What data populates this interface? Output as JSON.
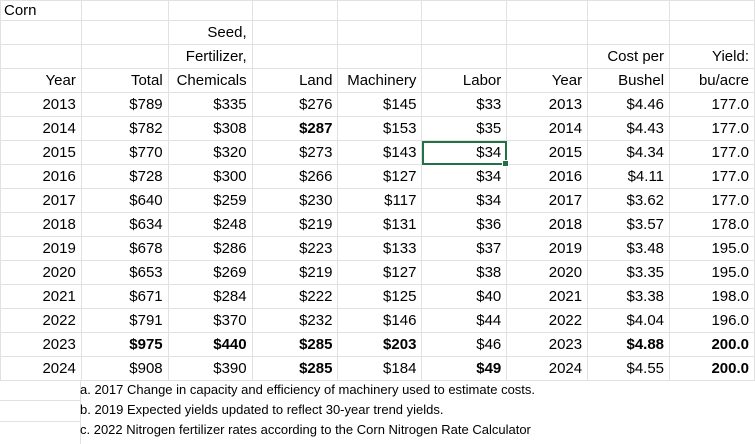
{
  "sheet": {
    "title": "Corn",
    "headers": [
      [
        "",
        "",
        "Seed,",
        "",
        "",
        "",
        "",
        "",
        ""
      ],
      [
        "",
        "",
        "Fertilizer,",
        "",
        "",
        "",
        "",
        "Cost per",
        "Yield:"
      ],
      [
        "Year",
        "Total",
        "Chemicals",
        "Land",
        "Machinery",
        "Labor",
        "Year",
        "Bushel",
        "bu/acre"
      ]
    ],
    "rows": [
      [
        "2013",
        "$789",
        "$335",
        "$276",
        "$145",
        "$33",
        "2013",
        "$4.46",
        "177.0"
      ],
      [
        "2014",
        "$782",
        "$308",
        "$287",
        "$153",
        "$35",
        "2014",
        "$4.43",
        "177.0"
      ],
      [
        "2015",
        "$770",
        "$320",
        "$273",
        "$143",
        "$34",
        "2015",
        "$4.34",
        "177.0"
      ],
      [
        "2016",
        "$728",
        "$300",
        "$266",
        "$127",
        "$34",
        "2016",
        "$4.11",
        "177.0"
      ],
      [
        "2017",
        "$640",
        "$259",
        "$230",
        "$117",
        "$34",
        "2017",
        "$3.62",
        "177.0"
      ],
      [
        "2018",
        "$634",
        "$248",
        "$219",
        "$131",
        "$36",
        "2018",
        "$3.57",
        "178.0"
      ],
      [
        "2019",
        "$678",
        "$286",
        "$223",
        "$133",
        "$37",
        "2019",
        "$3.48",
        "195.0"
      ],
      [
        "2020",
        "$653",
        "$269",
        "$219",
        "$127",
        "$38",
        "2020",
        "$3.35",
        "195.0"
      ],
      [
        "2021",
        "$671",
        "$284",
        "$222",
        "$125",
        "$40",
        "2021",
        "$3.38",
        "198.0"
      ],
      [
        "2022",
        "$791",
        "$370",
        "$232",
        "$146",
        "$44",
        "2022",
        "$4.04",
        "196.0"
      ],
      [
        "2023",
        "$975",
        "$440",
        "$285",
        "$203",
        "$46",
        "2023",
        "$4.88",
        "200.0"
      ],
      [
        "2024",
        "$908",
        "$390",
        "$285",
        "$184",
        "$49",
        "2024",
        "$4.55",
        "200.0"
      ]
    ],
    "footnotes": [
      "a. 2017 Change in capacity and efficiency of machinery used to estimate costs.",
      "b. 2019 Expected yields updated to reflect 30-year trend yields.",
      "c. 2022 Nitrogen fertilizer rates according to the Corn Nitrogen Rate Calculator"
    ],
    "selected_cell_value": "$34",
    "colors": {
      "selection": "#217346",
      "gridline": "#e1e1e1"
    }
  }
}
